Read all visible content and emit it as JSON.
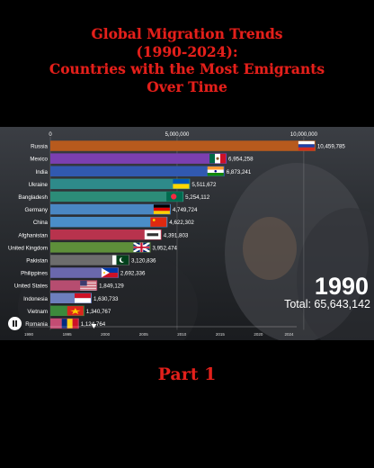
{
  "title_lines": [
    "Global Migration Trends",
    "(1990-2024):",
    "Countries with the Most Emigrants",
    "Over Time"
  ],
  "part_label": "Part 1",
  "current_year": "1990",
  "total_label": "Total: 65,643,142",
  "chart_data": {
    "type": "bar",
    "orientation": "horizontal",
    "title": "",
    "xlabel": "",
    "ylabel": "",
    "xlim": [
      0,
      10500000
    ],
    "x_ticks": [
      0,
      5000000,
      10000000
    ],
    "x_tick_labels": [
      "0",
      "5,000,000",
      "10,000,000"
    ],
    "categories": [
      "Russia",
      "Mexico",
      "India",
      "Ukraine",
      "Bangladesh",
      "Germany",
      "China",
      "Afghanistan",
      "United Kingdom",
      "Pakistan",
      "Philippines",
      "United States",
      "Indonesia",
      "Vietnam",
      "Romania"
    ],
    "values": [
      10459785,
      6954258,
      6873241,
      5511672,
      5254112,
      4749724,
      4622302,
      4391803,
      3952474,
      3120836,
      2692336,
      1849129,
      1630733,
      1340767,
      1124764
    ],
    "value_labels": [
      "10,459,785",
      "6,954,258",
      "6,873,241",
      "5,511,672",
      "5,254,112",
      "4,749,724",
      "4,622,302",
      "4,391,803",
      "3,952,474",
      "3,120,836",
      "2,692,336",
      "1,849,129",
      "1,630,733",
      "1,340,767",
      "1,124,764"
    ],
    "colors": [
      "#b75a1d",
      "#7b3fb0",
      "#3159b0",
      "#2e8a8a",
      "#2c8c78",
      "#4a87c3",
      "#4a8ec9",
      "#b8334d",
      "#5e8f3a",
      "#6d6d6d",
      "#6a68ad",
      "#b64d70",
      "#6d7fbd",
      "#3c8a3c",
      "#c34c73"
    ],
    "flag_icons": [
      "russia-flag-icon",
      "mexico-flag-icon",
      "india-flag-icon",
      "ukraine-flag-icon",
      "bangladesh-flag-icon",
      "germany-flag-icon",
      "china-flag-icon",
      "afghanistan-flag-icon",
      "uk-flag-icon",
      "pakistan-flag-icon",
      "philippines-flag-icon",
      "usa-flag-icon",
      "indonesia-flag-icon",
      "vietnam-flag-icon",
      "romania-flag-icon"
    ],
    "timeline_labels": [
      "1990",
      "1995",
      "2000",
      "2005",
      "2010",
      "2015",
      "2020",
      "2024"
    ],
    "timeline_values": [
      1990,
      1995,
      2000,
      2005,
      2010,
      2015,
      2020,
      2024
    ],
    "timeline_current": 1998.5,
    "timeline_range": [
      1990,
      2025
    ],
    "grid": true
  }
}
